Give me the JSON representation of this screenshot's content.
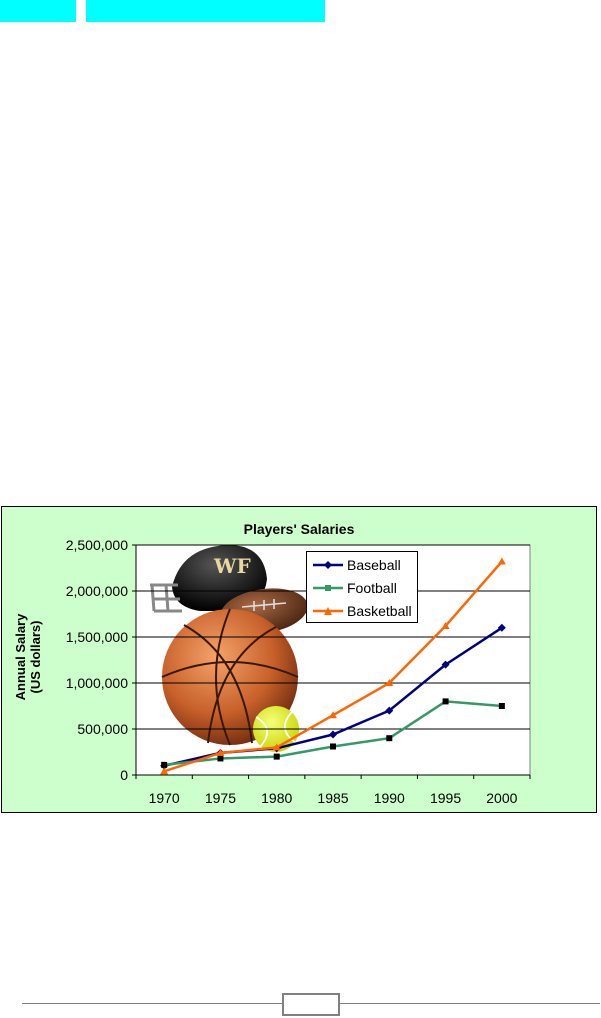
{
  "colors": {
    "cyan": "#00ffff",
    "plot_bg": "#ccffcc",
    "baseball": "#000080",
    "football": "#339966",
    "basketball": "#ff6600"
  },
  "chart_data": {
    "type": "line",
    "title": "Players' Salaries",
    "ylabel": "Annual Salary\n(US dollars)",
    "xlabel": "",
    "categories": [
      "1970",
      "1975",
      "1980",
      "1985",
      "1990",
      "1995",
      "2000"
    ],
    "yticks": [
      "0",
      "500,000",
      "1,000,000",
      "1,500,000",
      "2,000,000",
      "2,500,000"
    ],
    "ylim": [
      0,
      2500000
    ],
    "grid": true,
    "legend": "top-right",
    "series": [
      {
        "name": "Baseball",
        "marker": "diamond",
        "color": "#000080",
        "values": [
          100000,
          240000,
          290000,
          440000,
          700000,
          1200000,
          1600000
        ]
      },
      {
        "name": "Football",
        "marker": "square",
        "color": "#339966",
        "values": [
          110000,
          180000,
          200000,
          310000,
          400000,
          800000,
          750000
        ]
      },
      {
        "name": "Basketball",
        "marker": "triangle",
        "color": "#ff6600",
        "values": [
          40000,
          240000,
          300000,
          650000,
          1000000,
          1620000,
          2320000
        ]
      }
    ]
  }
}
